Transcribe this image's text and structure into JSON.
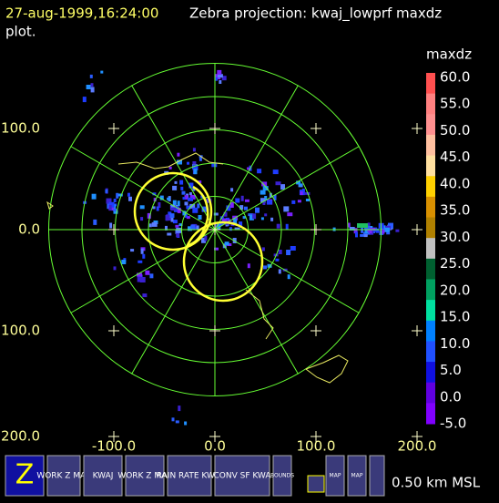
{
  "header": {
    "time": "27-aug-1999,16:24:00",
    "title": "Zebra projection: kwaj_lowprf maxdz",
    "title_cont": "plot."
  },
  "colorbar": {
    "field": "maxdz",
    "labels": [
      "60.0",
      "55.0",
      "50.0",
      "45.0",
      "40.0",
      "35.0",
      "30.0",
      "25.0",
      "20.0",
      "15.0",
      "10.0",
      "5.0",
      "0.0",
      "-5.0"
    ]
  },
  "axes": {
    "y_labels": [
      "100.0",
      "0.0",
      "100.0",
      "200.0"
    ],
    "x_labels": [
      "-100.0",
      "0.0",
      "100.0",
      "200.0"
    ]
  },
  "toolbar": {
    "buttons": [
      "Z",
      "WORK Z MAP",
      "KWAJ",
      "WORK Z MAP",
      "RAIN RATE KWAJ",
      "CONV SF KWA",
      "BOUNDS",
      "MAP",
      "MAP"
    ],
    "altitude": "0.50 km MSL"
  }
}
